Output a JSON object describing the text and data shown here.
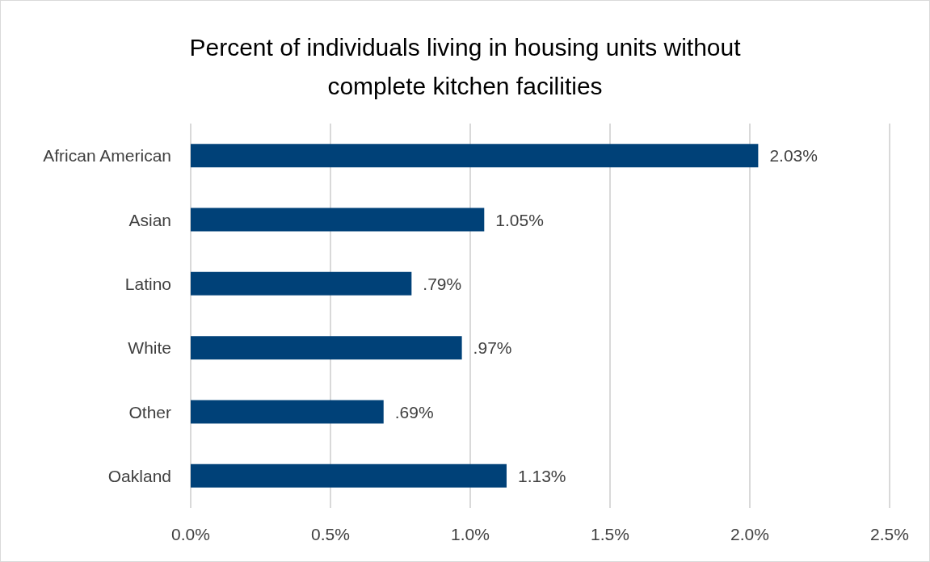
{
  "chart_data": {
    "type": "bar",
    "orientation": "horizontal",
    "title": "Percent of individuals living in housing units without\ncomplete kitchen facilities",
    "categories": [
      "African American",
      "Asian",
      "Latino",
      "White",
      "Other",
      "Oakland"
    ],
    "values": [
      2.03,
      1.05,
      0.79,
      0.97,
      0.69,
      1.13
    ],
    "value_labels": [
      "2.03%",
      "1.05%",
      ".79%",
      ".97%",
      ".69%",
      "1.13%"
    ],
    "color": "#004178",
    "xlim": [
      0,
      2.5
    ],
    "xticks": [
      {
        "value": 0,
        "label": "0.0%"
      },
      {
        "value": 0.5,
        "label": "0.5%"
      },
      {
        "value": 1,
        "label": "1.0%"
      },
      {
        "value": 1.5,
        "label": "1.5%"
      },
      {
        "value": 2,
        "label": "2.0%"
      },
      {
        "value": 2.5,
        "label": "2.5%"
      }
    ],
    "grid": "x"
  }
}
